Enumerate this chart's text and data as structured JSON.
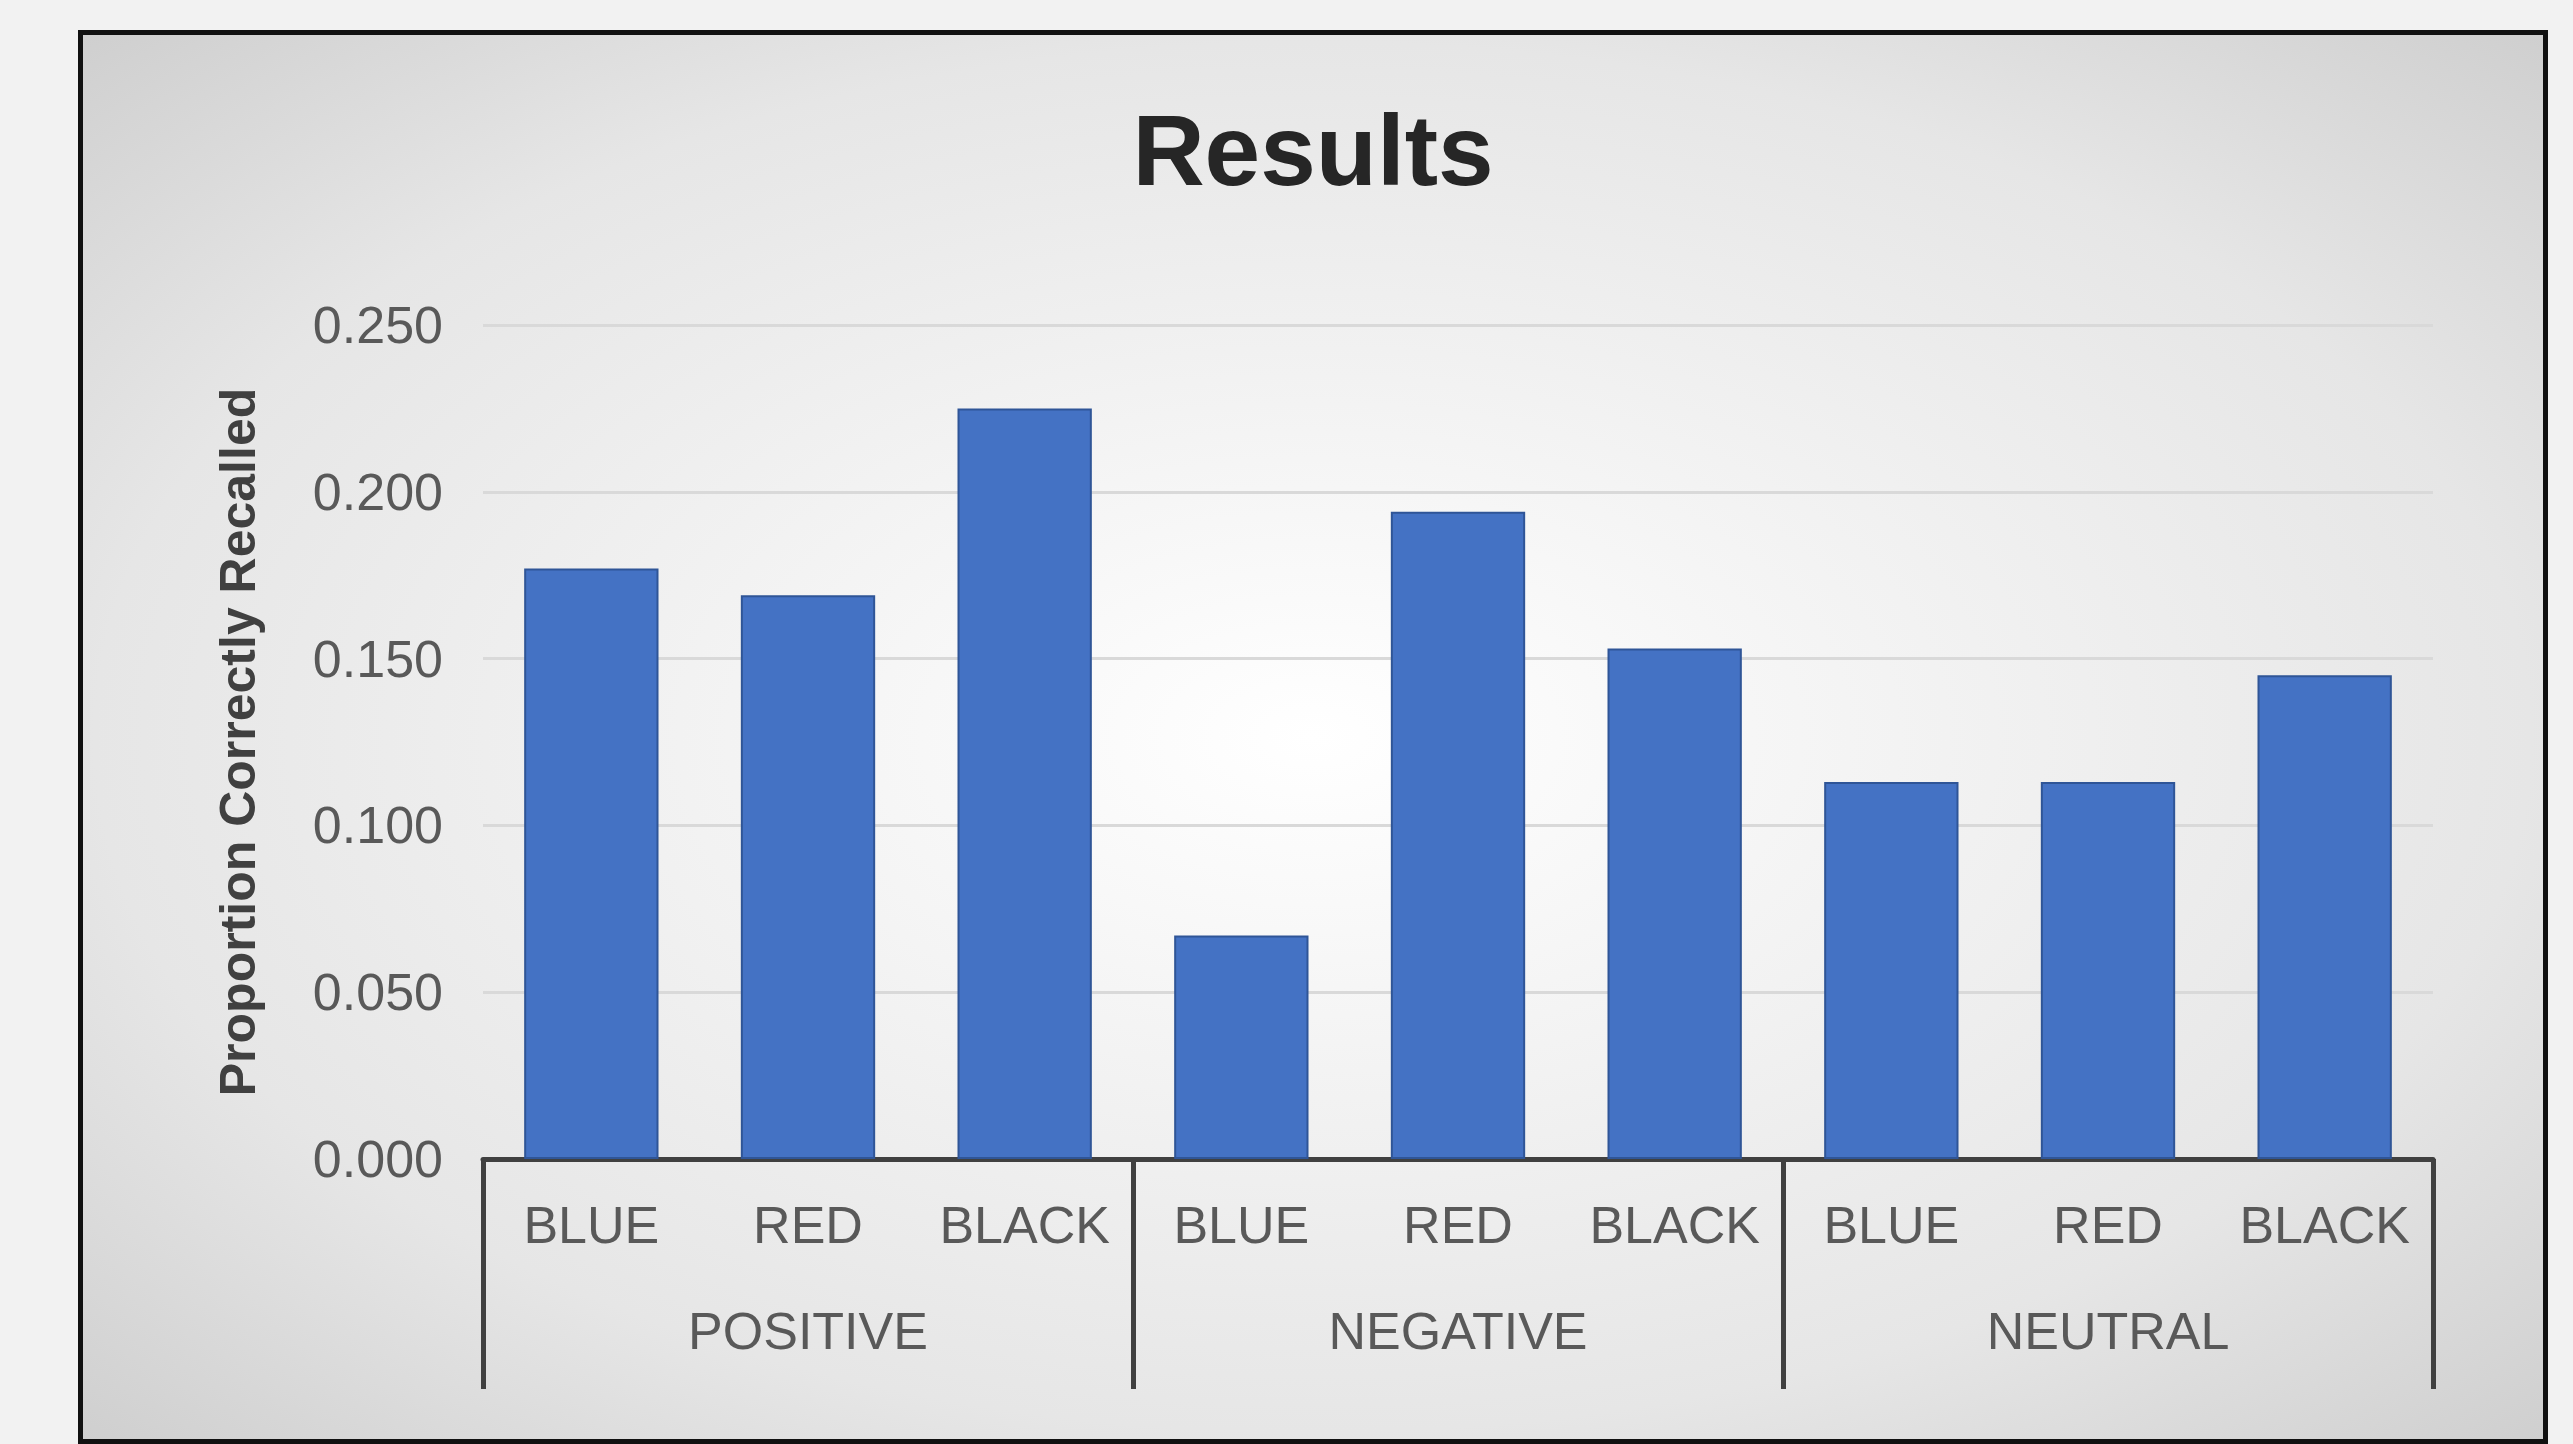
{
  "chart_data": {
    "type": "bar",
    "title": "Results",
    "ylabel": "Proportion Correctly Recalled",
    "categories": [
      "BLUE",
      "RED",
      "BLACK",
      "BLUE",
      "RED",
      "BLACK",
      "BLUE",
      "RED",
      "BLACK"
    ],
    "values": [
      0.177,
      0.169,
      0.225,
      0.067,
      0.194,
      0.153,
      0.113,
      0.113,
      0.145
    ],
    "color": "#4472c4",
    "ylim": [
      0,
      0.25
    ],
    "yticks": [
      {
        "value": 0,
        "label": "0.000"
      },
      {
        "value": 0.05,
        "label": "0.050"
      },
      {
        "value": 0.1,
        "label": "0.100"
      },
      {
        "value": 0.15,
        "label": "0.150"
      },
      {
        "value": 0.2,
        "label": "0.200"
      },
      {
        "value": 0.25,
        "label": "0.250"
      }
    ],
    "grid": "y",
    "annotations": [
      "POSITIVE",
      "NEGATIVE",
      "NEUTRAL"
    ]
  }
}
